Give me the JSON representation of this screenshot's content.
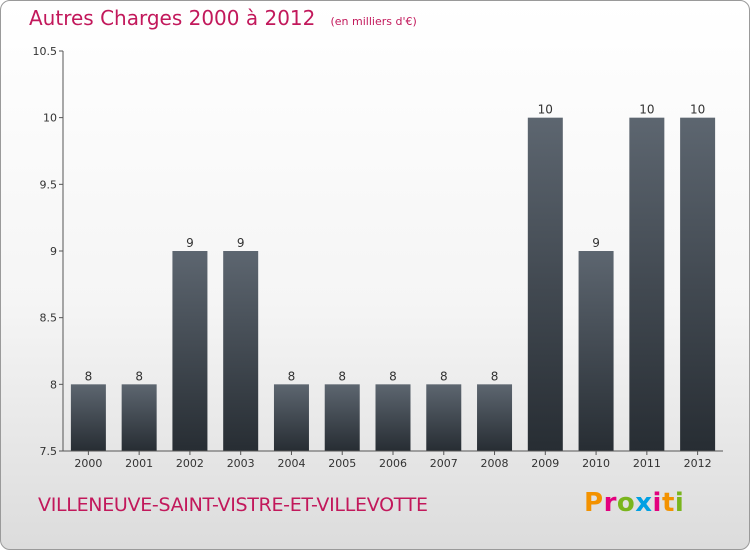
{
  "header": {
    "title": "Autres Charges 2000 à 2012",
    "unit": "(en milliers d'€)"
  },
  "footer": {
    "commune": "VILLENEUVE-SAINT-VISTRE-ET-VILLEVOTTE",
    "logo_text": "Proxiti",
    "logo_colors": [
      "#f39200",
      "#e3007e",
      "#7ab51d",
      "#00a0e3",
      "#e3007e",
      "#f39200",
      "#7ab51d"
    ]
  },
  "colors": {
    "title": "#c2185b",
    "bar_top": "#5d6670",
    "bar_bottom": "#272d33"
  },
  "chart_data": {
    "type": "bar",
    "title": "Autres Charges 2000 à 2012",
    "subtitle": "(en milliers d'€)",
    "categories": [
      "2000",
      "2001",
      "2002",
      "2003",
      "2004",
      "2005",
      "2006",
      "2007",
      "2008",
      "2009",
      "2010",
      "2011",
      "2012"
    ],
    "values": [
      8,
      8,
      9,
      9,
      8,
      8,
      8,
      8,
      8,
      10,
      9,
      10,
      10
    ],
    "data_labels": [
      "8",
      "8",
      "9",
      "9",
      "8",
      "8",
      "8",
      "8",
      "8",
      "10",
      "9",
      "10",
      "10"
    ],
    "ylim": [
      7.5,
      10.5
    ],
    "yticks": [
      "7.5",
      "8",
      "8.5",
      "9",
      "9.5",
      "10",
      "10.5"
    ],
    "xlabel": "",
    "ylabel": "",
    "grid": false
  }
}
